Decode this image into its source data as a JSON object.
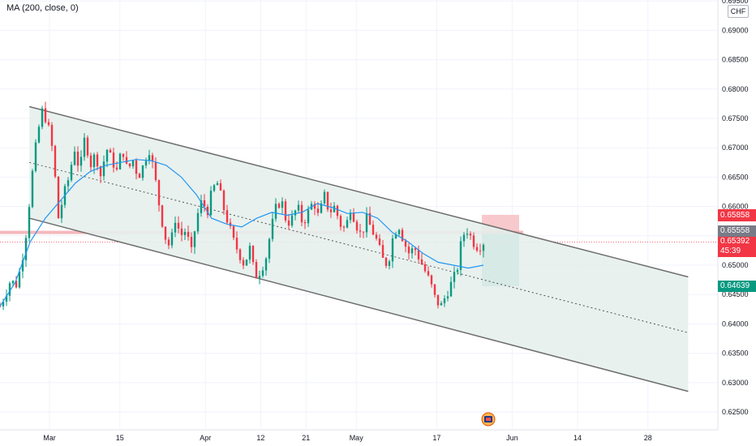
{
  "indicator": {
    "label": "MA (200, close, 0)"
  },
  "currency": "CHF",
  "colors": {
    "up": "#089981",
    "down": "#f23645",
    "ma": "#2196f3",
    "channel_fill": "#e6efec",
    "channel_line": "#6e6e6e",
    "stop_zone": "#f7c9cc",
    "target_zone": "#5fb7ad",
    "entry_line": "#f2a6ab"
  },
  "price_labels": {
    "stop_loss": "0.65858",
    "entry": "0.65558",
    "current_price": "0.65392",
    "countdown": "45:39",
    "take_profit": "0.64639"
  },
  "event_icon": "calendar-event-icon",
  "chart_data": {
    "type": "candlestick",
    "title": "",
    "ylim": [
      0.6225,
      0.6955
    ],
    "y_ticks": [
      "0.62500",
      "0.63000",
      "0.63500",
      "0.64000",
      "0.64500",
      "0.65000",
      "0.65500",
      "0.66000",
      "0.66500",
      "0.67000",
      "0.67500",
      "0.68000",
      "0.68500",
      "0.69000",
      "0.69500"
    ],
    "x_ticks": [
      "Mar",
      "15",
      "Apr",
      "12",
      "21",
      "May",
      "17",
      "Jun",
      "14",
      "28"
    ],
    "price_path": [
      [
        0.643,
        0.645,
        0.6475,
        0.6465,
        0.65,
        0.656,
        0.665,
        0.672,
        0.6765,
        0.674,
        0.669,
        0.658,
        0.662,
        0.665,
        0.67,
        0.666,
        0.672,
        0.667,
        0.669,
        0.665,
        0.67,
        0.668,
        0.666,
        0.67,
        0.666,
        0.668,
        0.665,
        0.667,
        0.67,
        0.666,
        0.66,
        0.655,
        0.653,
        0.658,
        0.655,
        0.656,
        0.652,
        0.658,
        0.661,
        0.659,
        0.663,
        0.664,
        0.66,
        0.657,
        0.654,
        0.652,
        0.65,
        0.653,
        0.648,
        0.649,
        0.651,
        0.656,
        0.66,
        0.661,
        0.657,
        0.658,
        0.66,
        0.657,
        0.659,
        0.661,
        0.658,
        0.662,
        0.659,
        0.66,
        0.657,
        0.656,
        0.66,
        0.657,
        0.655,
        0.658,
        0.656,
        0.654,
        0.651,
        0.65,
        0.655,
        0.657,
        0.654,
        0.652,
        0.653,
        0.651,
        0.649,
        0.647,
        0.644,
        0.643,
        0.645,
        0.647,
        0.649,
        0.655,
        0.656,
        0.654,
        0.653,
        0.6539
      ]
    ],
    "ma_200": [
      0.643,
      0.647,
      0.654,
      0.658,
      0.661,
      0.664,
      0.666,
      0.667,
      0.6675,
      0.668,
      0.6678,
      0.667,
      0.665,
      0.662,
      0.658,
      0.657,
      0.6565,
      0.658,
      0.659,
      0.6585,
      0.659,
      0.6605,
      0.6598,
      0.6588,
      0.659,
      0.658,
      0.6555,
      0.654,
      0.652,
      0.6505,
      0.65,
      0.6495,
      0.65
    ],
    "channel": {
      "upper": {
        "x": [
          "2021-02-25",
          "2021-07-06"
        ],
        "y": [
          0.677,
          0.648
        ]
      },
      "mid": {
        "x": [
          "2021-02-25",
          "2021-07-06"
        ],
        "y": [
          0.6675,
          0.6385
        ]
      },
      "lower": {
        "x": [
          "2021-02-25",
          "2021-07-06"
        ],
        "y": [
          0.658,
          0.6285
        ]
      }
    },
    "position": {
      "side": "short",
      "entry": 0.65558,
      "stop_loss": 0.65858,
      "take_profit": 0.64639
    },
    "grid": true,
    "axis_position": "right"
  }
}
